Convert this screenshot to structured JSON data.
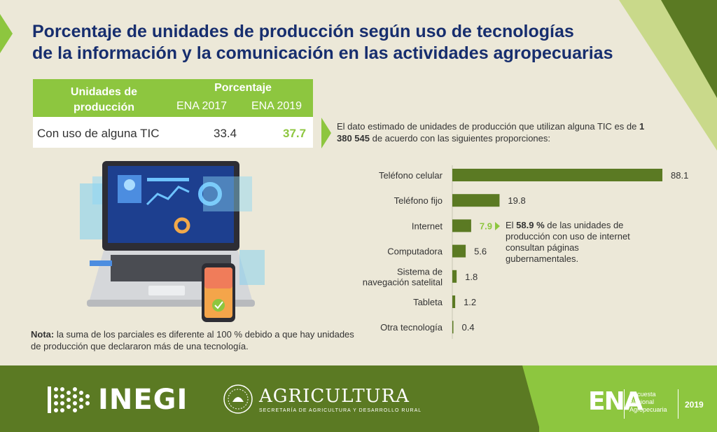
{
  "title": {
    "line1": "Porcentaje de unidades de producción según uso de tecnologías",
    "line2": "de la información y la comunicación en las actividades agropecuarias"
  },
  "table": {
    "col_unidades_l1": "Unidades de",
    "col_unidades_l2": "producción",
    "col_porcentaje": "Porcentaje",
    "col_y1": "ENA 2017",
    "col_y2": "ENA 2019",
    "row_label": "Con uso de alguna TIC",
    "row_v1": "33.4",
    "row_v2": "37.7"
  },
  "intro": {
    "part1": "El dato estimado de unidades de producción que utilizan alguna TIC es de ",
    "bold": "1 380 545",
    "part2": " de acuerdo con las siguientes proporciones:"
  },
  "chart_data": {
    "type": "bar",
    "orientation": "horizontal",
    "categories": [
      "Teléfono celular",
      "Teléfono fijo",
      "Internet",
      "Computadora",
      "Sistema de navegación satelital",
      "Tableta",
      "Otra tecnología"
    ],
    "category_lines": [
      [
        "Teléfono celular"
      ],
      [
        "Teléfono fijo"
      ],
      [
        "Internet"
      ],
      [
        "Computadora"
      ],
      [
        "Sistema de",
        "navegación satelital"
      ],
      [
        "Tableta"
      ],
      [
        "Otra tecnología"
      ]
    ],
    "values": [
      88.1,
      19.8,
      7.9,
      5.6,
      1.8,
      1.2,
      0.4
    ],
    "value_labels": [
      "88.1",
      "19.8",
      "7.9",
      "5.6",
      "1.8",
      "1.2",
      "0.4"
    ],
    "highlight_index": 2,
    "xlim": [
      0,
      88.1
    ]
  },
  "callout": {
    "pre": "El ",
    "bold": "58.9 %",
    "post": " de las unidades de producción con uso de internet consultan páginas gubernamentales."
  },
  "nota": {
    "label": "Nota:",
    "text": " la suma de los parciales es diferente al 100 % debido a que hay unidades de producción que declararon más de una tecnología."
  },
  "footer": {
    "inegi": "INEGI",
    "agricultura": "AGRICULTURA",
    "agricultura_sub": "SECRETARÍA DE AGRICULTURA Y DESARROLLO RURAL",
    "ena": "ENA",
    "ena_desc_1": "Encuesta",
    "ena_desc_2": "Nacional",
    "ena_desc_3": "Agropecuaria",
    "ena_year": "2019"
  },
  "colors": {
    "bar": "#5b7a23",
    "accent": "#8dc63f",
    "title": "#172e6e",
    "background": "#ece8d8"
  }
}
